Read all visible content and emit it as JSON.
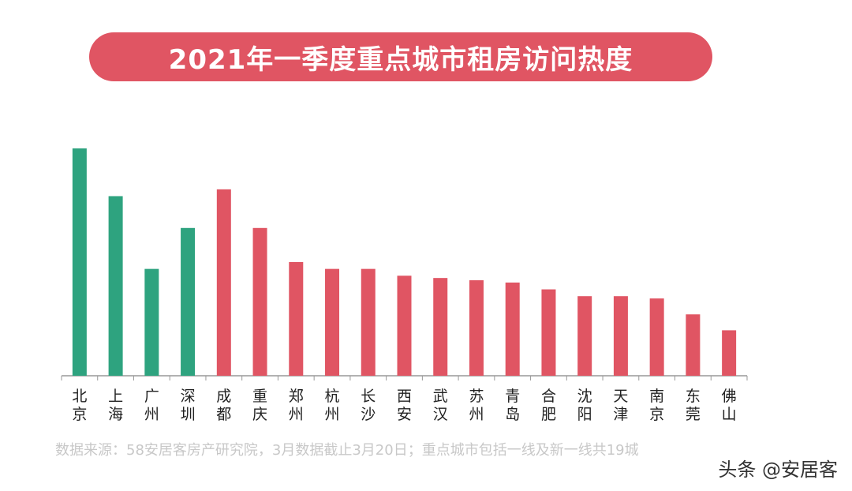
{
  "chart_data": {
    "type": "bar",
    "title": "2021年一季度重点城市租房访问热度",
    "categories": [
      "北京",
      "上海",
      "广州",
      "深圳",
      "成都",
      "重庆",
      "郑州",
      "杭州",
      "长沙",
      "西安",
      "武汉",
      "苏州",
      "青岛",
      "合肥",
      "沈阳",
      "天津",
      "南京",
      "东莞",
      "佛山"
    ],
    "values": [
      100,
      79,
      47,
      65,
      82,
      65,
      50,
      47,
      47,
      44,
      43,
      42,
      41,
      38,
      35,
      35,
      34,
      27,
      20
    ],
    "ylim": [
      0,
      100
    ],
    "grid": false,
    "colors": [
      "#2ea37f",
      "#2ea37f",
      "#2ea37f",
      "#2ea37f",
      "#e05563",
      "#e05563",
      "#e05563",
      "#e05563",
      "#e05563",
      "#e05563",
      "#e05563",
      "#e05563",
      "#e05563",
      "#e05563",
      "#e05563",
      "#e05563",
      "#e05563",
      "#e05563",
      "#e05563"
    ]
  },
  "colors": {
    "title_bg": "#e05563",
    "first_tier": "#2ea37f",
    "new_first_tier": "#e05563"
  },
  "note": "数据来源：58安居客房产研究院，3月数据截止3月20日；重点城市包括一线及新一线共19城",
  "watermark": "头条 @安居客"
}
